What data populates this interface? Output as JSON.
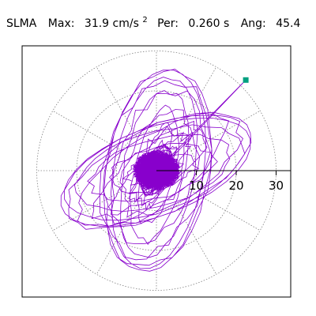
{
  "header": {
    "station": "SLMA",
    "max_label": "Max:",
    "max_value": "31.9 cm/s",
    "max_unit_exp": "2",
    "period_label": "Per:",
    "period_value": "0.260 s",
    "angle_label": "Ang:",
    "angle_value": "45.4"
  },
  "chart_data": {
    "type": "polar-particle-motion",
    "radial_ticks": [
      10,
      20,
      30
    ],
    "radial_tick_labels": [
      "10",
      "20",
      "30"
    ],
    "ring_radii": [
      10,
      20,
      30
    ],
    "angular_spokes_deg": [
      0,
      30,
      60,
      90,
      120,
      150,
      180,
      210,
      240,
      270,
      300,
      330
    ],
    "max_marker": {
      "r": 31.9,
      "angle_deg": 45.4
    },
    "colors": {
      "trace": "#8800cc",
      "marker": "#00a080",
      "grid": "#808080",
      "axis": "#000000"
    }
  }
}
